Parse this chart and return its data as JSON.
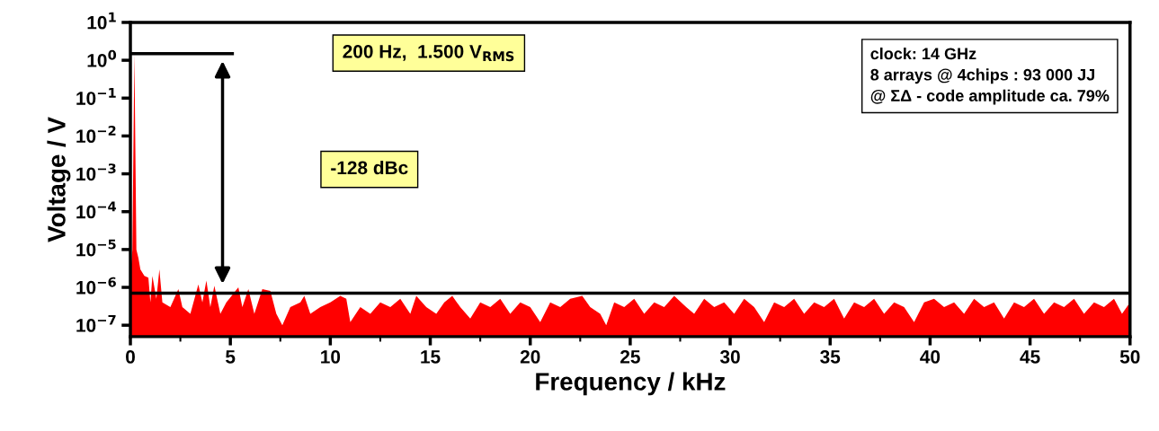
{
  "chart_data": {
    "type": "area",
    "xlabel": "Frequency / kHz",
    "ylabel": "Voltage / V",
    "xlim": [
      0,
      50
    ],
    "xticks": [
      0,
      5,
      10,
      15,
      20,
      25,
      30,
      35,
      40,
      45,
      50
    ],
    "ylim": [
      5e-08,
      10
    ],
    "log": "y",
    "yticks": [
      {
        "value": 1e-07,
        "label": "10$^{−7}$"
      },
      {
        "value": 1e-06,
        "label": "10$^{−6}$"
      },
      {
        "value": 1e-05,
        "label": "10$^{−5}$"
      },
      {
        "value": 0.0001,
        "label": "10$^{−4}$"
      },
      {
        "value": 0.001,
        "label": "10$^{−3}$"
      },
      {
        "value": 0.01,
        "label": "10$^{−2}$"
      },
      {
        "value": 0.1,
        "label": "10$^{−1}$"
      },
      {
        "value": 1,
        "label": "10$^{0}$"
      },
      {
        "value": 10,
        "label": "10$^{1}$"
      }
    ],
    "grid": false,
    "series": [
      {
        "color": "#ff0000",
        "x": [
          0.0,
          0.1,
          0.2,
          0.3,
          0.4,
          0.5,
          0.7,
          0.9,
          1.0,
          1.1,
          1.3,
          1.45,
          1.6,
          2.0,
          2.4,
          2.6,
          3.0,
          3.4,
          3.6,
          3.8,
          4.0,
          4.2,
          4.5,
          4.8,
          5.4,
          5.6,
          5.9,
          6.2,
          6.6,
          7.0,
          7.3,
          7.6,
          8.0,
          8.5,
          8.7,
          9.0,
          9.5,
          10.0,
          10.5,
          10.8,
          11.0,
          11.5,
          12.0,
          12.5,
          13.0,
          13.5,
          14.0,
          14.3,
          14.8,
          15.3,
          15.7,
          16.1,
          16.5,
          17.0,
          17.5,
          18.0,
          18.5,
          19.0,
          19.5,
          20.0,
          20.5,
          21.0,
          21.5,
          22.0,
          22.6,
          23.0,
          23.5,
          23.8,
          24.2,
          24.7,
          25.2,
          25.7,
          26.2,
          26.7,
          27.2,
          27.8,
          28.2,
          28.7,
          29.2,
          29.7,
          30.2,
          30.7,
          31.2,
          31.7,
          32.2,
          32.7,
          33.2,
          33.7,
          34.2,
          34.7,
          35.2,
          35.7,
          36.2,
          36.7,
          37.2,
          37.7,
          38.2,
          38.7,
          39.2,
          39.7,
          40.2,
          40.7,
          41.2,
          41.7,
          42.2,
          42.7,
          43.2,
          43.7,
          44.2,
          44.7,
          45.2,
          45.7,
          46.2,
          46.7,
          47.2,
          47.7,
          48.2,
          48.7,
          49.2,
          49.6,
          50.0
        ],
        "values": [
          2e-06,
          1e-05,
          1.5,
          1e-05,
          6e-06,
          3e-06,
          2e-06,
          1.8e-06,
          4e-07,
          2e-06,
          5e-07,
          3e-06,
          4e-07,
          3e-07,
          9e-07,
          3e-07,
          2e-07,
          1.2e-06,
          4e-07,
          1.5e-06,
          3e-07,
          1.1e-06,
          2e-07,
          4e-07,
          1e-06,
          3e-07,
          9e-07,
          2e-07,
          9e-07,
          8e-07,
          2e-07,
          1e-07,
          3e-07,
          4e-07,
          6e-07,
          2e-07,
          3e-07,
          4e-07,
          6e-07,
          5e-07,
          1.2e-07,
          3e-07,
          2e-07,
          4e-07,
          3e-07,
          5e-07,
          2e-07,
          6e-07,
          3e-07,
          2e-07,
          4e-07,
          6e-07,
          3e-07,
          1.5e-07,
          4e-07,
          3e-07,
          5e-07,
          2e-07,
          4e-07,
          3e-07,
          1.2e-07,
          4e-07,
          3e-07,
          5e-07,
          6e-07,
          3e-07,
          2e-07,
          1e-07,
          4e-07,
          3e-07,
          5e-07,
          2e-07,
          4e-07,
          3e-07,
          6e-07,
          3e-07,
          2e-07,
          5e-07,
          3e-07,
          4e-07,
          2e-07,
          5e-07,
          3e-07,
          1.2e-07,
          4e-07,
          3e-07,
          5e-07,
          2e-07,
          4e-07,
          3e-07,
          5e-07,
          1.5e-07,
          4e-07,
          3e-07,
          5e-07,
          2e-07,
          4e-07,
          3e-07,
          1.2e-07,
          4e-07,
          5e-07,
          3e-07,
          4e-07,
          2e-07,
          5e-07,
          3e-07,
          4e-07,
          1.5e-07,
          4e-07,
          3e-07,
          5e-07,
          2e-07,
          4e-07,
          3e-07,
          5e-07,
          2e-07,
          4e-07,
          3e-07,
          5e-07,
          2e-07,
          4e-07
        ]
      },
      {
        "type": "line",
        "color": "#000000",
        "x": [
          0,
          5.1
        ],
        "values": [
          1.5,
          1.5
        ]
      }
    ],
    "ref_lines": [
      {
        "axis": "y",
        "value": 7e-07,
        "color": "#000000"
      }
    ],
    "annotations": [
      "200 Hz,  1.500 V$_{RMS}$",
      "-128 dBc",
      "clock: 14 GHz\n8 arrays @ 4chips : 93 000 JJ\n@ ΣΔ - code amplitude ca. 79%"
    ]
  }
}
